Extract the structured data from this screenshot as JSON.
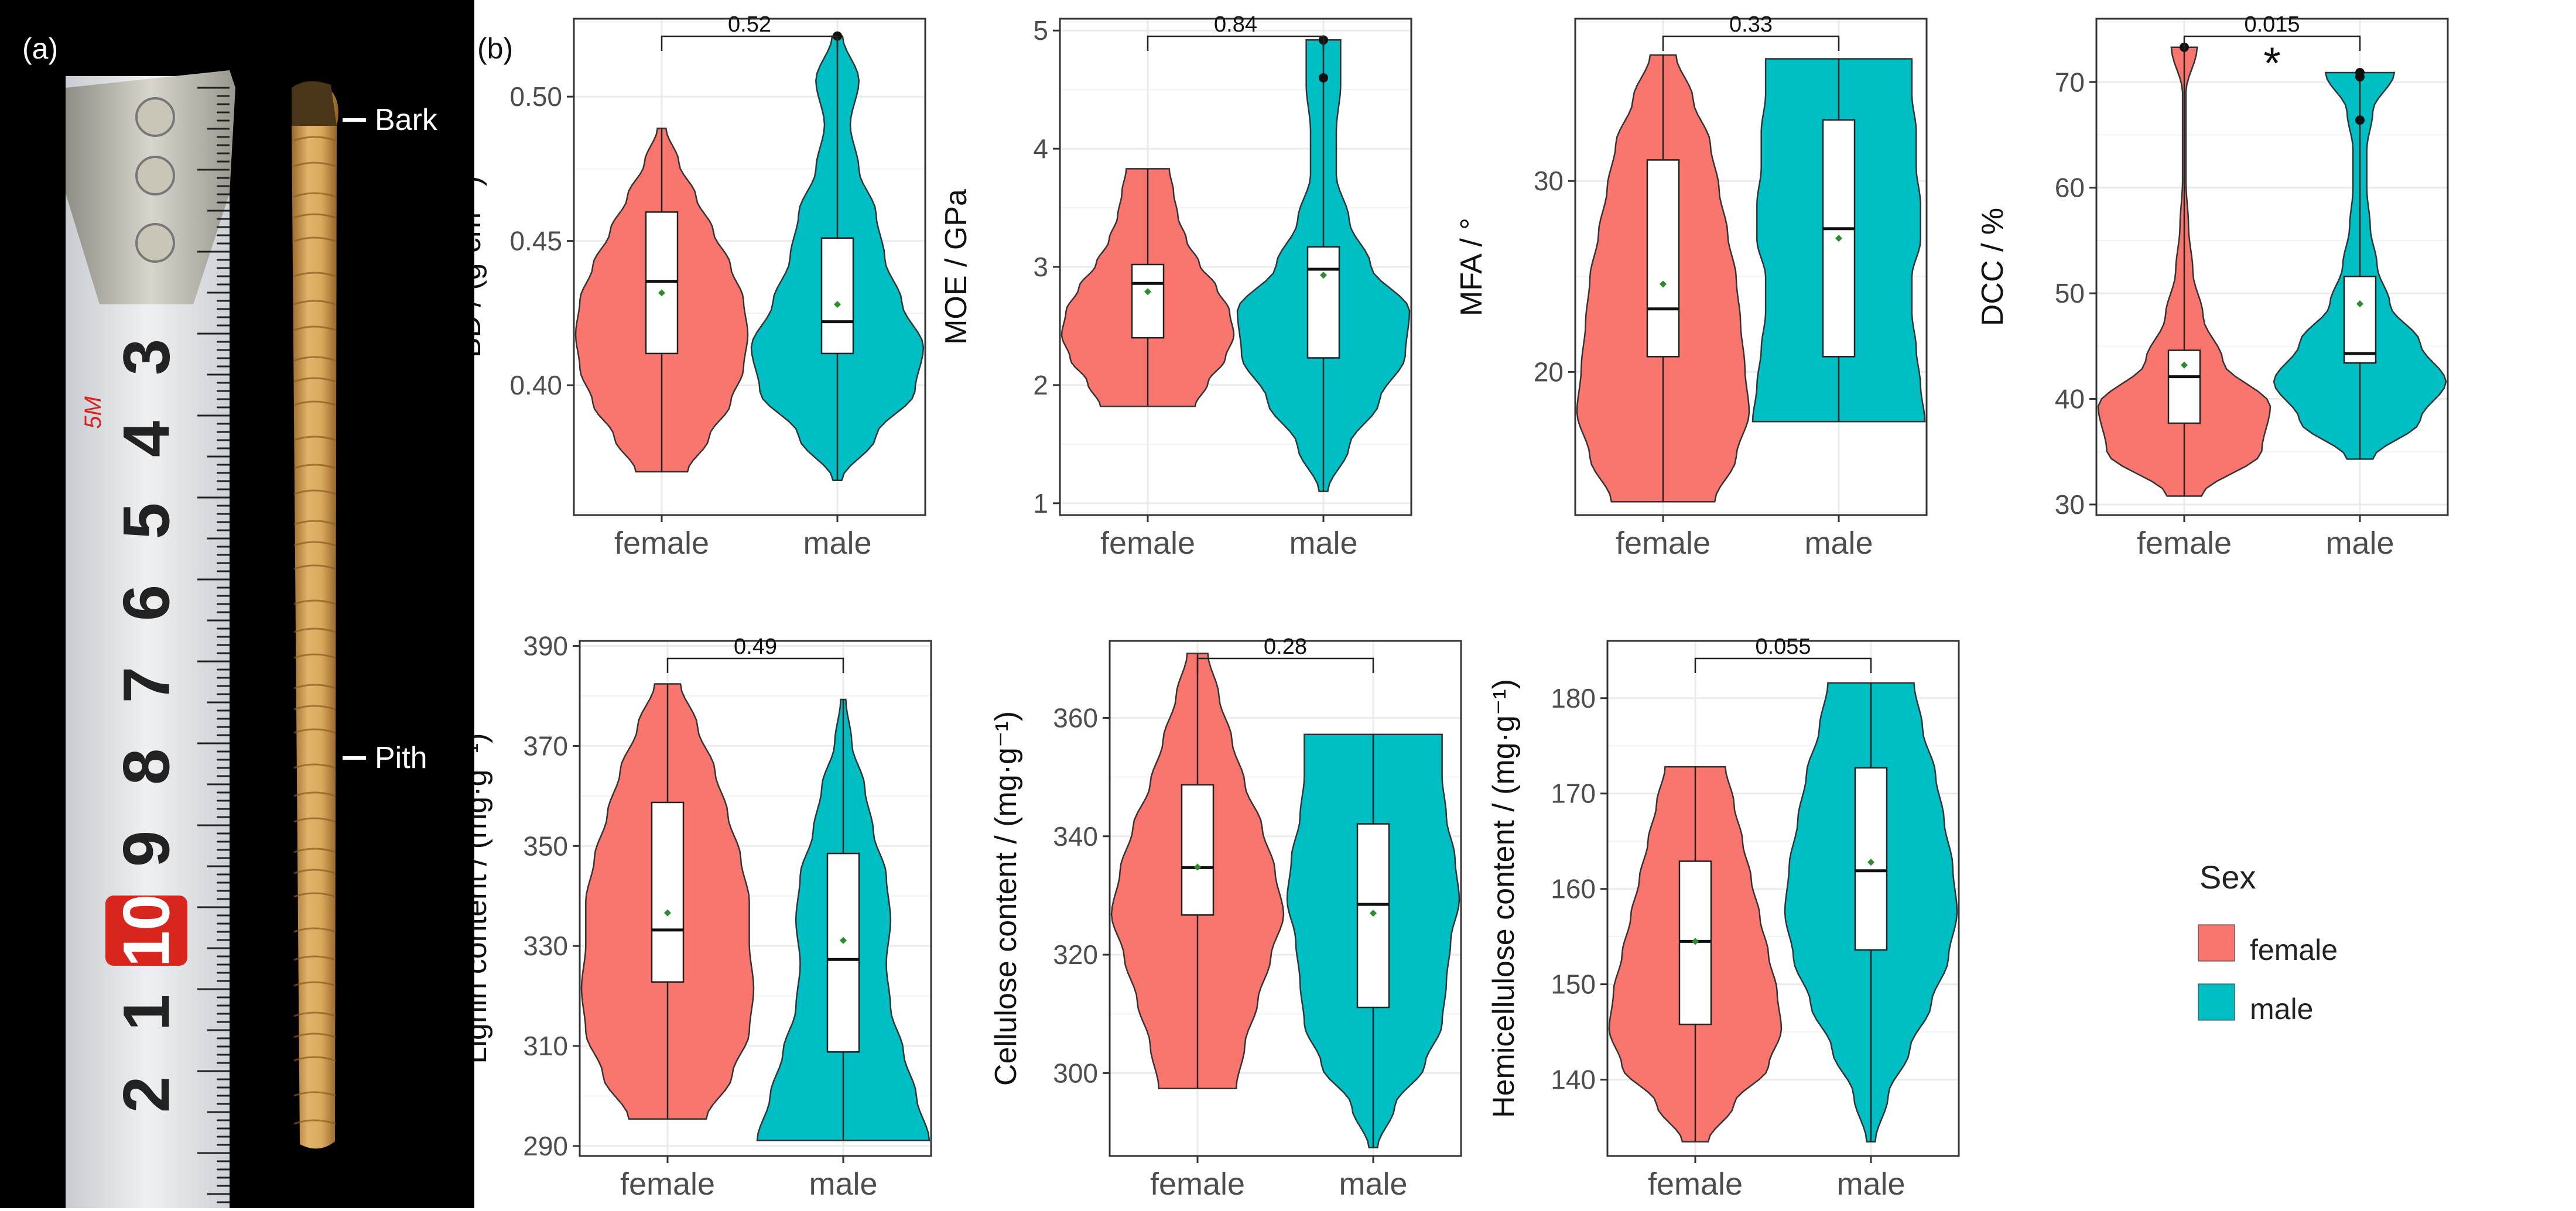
{
  "panel_a": {
    "label": "(a)",
    "tape_mark": "5M",
    "tape_numbers": [
      "3",
      "4",
      "5",
      "6",
      "7",
      "8",
      "9",
      "10",
      "1",
      "2"
    ],
    "bark_label": "Bark",
    "pith_label": "Pith"
  },
  "panel_b": {
    "label": "(b)"
  },
  "legend": {
    "title": "Sex",
    "items": [
      {
        "label": "female",
        "color": "#F8766D"
      },
      {
        "label": "male",
        "color": "#00BFC4"
      }
    ]
  },
  "colors": {
    "female": "#F8766D",
    "male": "#00BFC4",
    "mean_point": "#2e8b2e",
    "grid": "#ebebeb",
    "outline": "#333333"
  },
  "chart_data": [
    {
      "id": "bd",
      "type": "violin",
      "ylabel": "BD / (g·cm⁻³)",
      "categories": [
        "female",
        "male"
      ],
      "ylim": [
        0.355,
        0.527
      ],
      "yticks": [
        0.4,
        0.45,
        0.5
      ],
      "ytick_labels": [
        "0.40",
        "0.45",
        "0.50"
      ],
      "p_value": "0.52",
      "significance": "",
      "series": [
        {
          "name": "female",
          "min": 0.37,
          "max": 0.489,
          "q1": 0.411,
          "median": 0.436,
          "q3": 0.46,
          "mean": 0.432,
          "violin_profile": [
            0.3,
            0.55,
            0.8,
            0.95,
            1.0,
            0.95,
            0.8,
            0.6,
            0.4,
            0.2,
            0.05
          ],
          "outliers": []
        },
        {
          "name": "male",
          "min": 0.367,
          "max": 0.521,
          "q1": 0.411,
          "median": 0.422,
          "q3": 0.451,
          "mean": 0.428,
          "violin_profile": [
            0.05,
            0.45,
            0.9,
            1.0,
            0.75,
            0.55,
            0.45,
            0.25,
            0.15,
            0.25,
            0.06
          ],
          "outliers": [
            0.521
          ]
        }
      ]
    },
    {
      "id": "moe",
      "type": "violin",
      "ylabel": "MOE / GPa",
      "categories": [
        "female",
        "male"
      ],
      "ylim": [
        0.9,
        5.1
      ],
      "yticks": [
        1,
        2,
        3,
        4,
        5
      ],
      "ytick_labels": [
        "1",
        "2",
        "3",
        "4",
        "5"
      ],
      "p_value": "0.84",
      "significance": "",
      "series": [
        {
          "name": "female",
          "min": 1.82,
          "max": 3.83,
          "q1": 2.4,
          "median": 2.86,
          "q3": 3.02,
          "mean": 2.79,
          "violin_profile": [
            0.55,
            0.7,
            0.9,
            1.0,
            0.95,
            0.8,
            0.6,
            0.45,
            0.35,
            0.3,
            0.25
          ],
          "outliers": []
        },
        {
          "name": "male",
          "min": 1.1,
          "max": 4.92,
          "q1": 2.23,
          "median": 2.98,
          "q3": 3.17,
          "mean": 2.93,
          "violin_profile": [
            0.05,
            0.3,
            0.65,
            0.95,
            1.0,
            0.55,
            0.3,
            0.15,
            0.15,
            0.2,
            0.2
          ],
          "outliers": [
            4.92,
            4.6
          ]
        }
      ]
    },
    {
      "id": "mfa",
      "type": "violin",
      "ylabel": "MFA / °",
      "categories": [
        "female",
        "male"
      ],
      "ylim": [
        12.5,
        38.5
      ],
      "yticks": [
        20,
        30
      ],
      "ytick_labels": [
        "20",
        "30"
      ],
      "p_value": "0.33",
      "significance": "",
      "series": [
        {
          "name": "female",
          "min": 13.2,
          "max": 36.6,
          "q1": 20.8,
          "median": 23.3,
          "q3": 31.1,
          "mean": 24.6,
          "violin_profile": [
            0.6,
            0.85,
            1.0,
            0.95,
            0.9,
            0.85,
            0.75,
            0.65,
            0.55,
            0.35,
            0.15
          ],
          "outliers": []
        },
        {
          "name": "male",
          "min": 17.4,
          "max": 36.4,
          "q1": 20.8,
          "median": 27.5,
          "q3": 33.2,
          "mean": 27.0,
          "violin_profile": [
            1.0,
            0.95,
            0.9,
            0.85,
            0.85,
            0.95,
            0.95,
            0.9,
            0.9,
            0.85,
            0.85
          ],
          "outliers": []
        }
      ]
    },
    {
      "id": "dcc",
      "type": "violin",
      "ylabel": "DCC / %",
      "categories": [
        "female",
        "male"
      ],
      "ylim": [
        29,
        76
      ],
      "yticks": [
        30,
        40,
        50,
        60,
        70
      ],
      "ytick_labels": [
        "30",
        "40",
        "50",
        "60",
        "70"
      ],
      "p_value": "0.015",
      "significance": "*",
      "series": [
        {
          "name": "female",
          "min": 30.8,
          "max": 73.3,
          "q1": 37.7,
          "median": 42.1,
          "q3": 44.6,
          "mean": 43.2,
          "violin_profile": [
            0.2,
            0.9,
            1.0,
            0.45,
            0.22,
            0.1,
            0.05,
            0.02,
            0.02,
            0.02,
            0.15
          ],
          "outliers": [
            73.3
          ]
        },
        {
          "name": "male",
          "min": 34.3,
          "max": 70.9,
          "q1": 43.4,
          "median": 44.3,
          "q3": 51.6,
          "mean": 49.0,
          "violin_profile": [
            0.15,
            0.7,
            1.0,
            0.7,
            0.35,
            0.2,
            0.12,
            0.08,
            0.08,
            0.15,
            0.4
          ],
          "outliers": [
            70.9,
            70.5,
            66.4
          ]
        }
      ]
    },
    {
      "id": "lignin",
      "type": "violin",
      "ylabel": "Lignin content / (mg·g⁻¹)",
      "categories": [
        "female",
        "male"
      ],
      "ylim": [
        288,
        391
      ],
      "yticks": [
        290,
        310,
        330,
        350,
        370,
        390
      ],
      "ytick_labels": [
        "290",
        "310",
        "330",
        "350",
        "370",
        "390"
      ],
      "p_value": "0.49",
      "significance": "",
      "series": [
        {
          "name": "female",
          "min": 295.4,
          "max": 382.4,
          "q1": 322.8,
          "median": 333.2,
          "q3": 358.7,
          "mean": 336.6,
          "violin_profile": [
            0.45,
            0.75,
            0.95,
            1.0,
            0.95,
            0.95,
            0.85,
            0.7,
            0.55,
            0.35,
            0.15
          ],
          "outliers": []
        },
        {
          "name": "male",
          "min": 291.1,
          "max": 379.3,
          "q1": 308.8,
          "median": 327.3,
          "q3": 348.5,
          "mean": 331.1,
          "violin_profile": [
            1.0,
            0.85,
            0.7,
            0.55,
            0.5,
            0.55,
            0.5,
            0.35,
            0.25,
            0.1,
            0.03
          ],
          "outliers": []
        }
      ]
    },
    {
      "id": "cellulose",
      "type": "violin",
      "ylabel": "Cellulose content / (mg·g⁻¹)",
      "categories": [
        "female",
        "male"
      ],
      "ylim": [
        286,
        373
      ],
      "yticks": [
        300,
        320,
        340,
        360
      ],
      "ytick_labels": [
        "300",
        "320",
        "340",
        "360"
      ],
      "p_value": "0.28",
      "significance": "",
      "series": [
        {
          "name": "female",
          "min": 297.4,
          "max": 370.9,
          "q1": 326.7,
          "median": 334.7,
          "q3": 348.7,
          "mean": 334.8,
          "violin_profile": [
            0.45,
            0.55,
            0.7,
            0.85,
            1.0,
            0.9,
            0.75,
            0.55,
            0.4,
            0.25,
            0.12
          ],
          "outliers": []
        },
        {
          "name": "male",
          "min": 287.4,
          "max": 357.2,
          "q1": 311.1,
          "median": 328.5,
          "q3": 342.1,
          "mean": 327.0,
          "violin_profile": [
            0.05,
            0.25,
            0.6,
            0.8,
            0.85,
            0.9,
            1.0,
            0.95,
            0.85,
            0.8,
            0.8
          ],
          "outliers": []
        }
      ]
    },
    {
      "id": "hemicellulose",
      "type": "violin",
      "ylabel": "Hemicellulose content / (mg·g⁻¹)",
      "categories": [
        "female",
        "male"
      ],
      "ylim": [
        132,
        186
      ],
      "yticks": [
        140,
        150,
        160,
        170,
        180
      ],
      "ytick_labels": [
        "140",
        "150",
        "160",
        "170",
        "180"
      ],
      "p_value": "0.055",
      "significance": "",
      "series": [
        {
          "name": "female",
          "min": 133.5,
          "max": 172.8,
          "q1": 145.8,
          "median": 154.5,
          "q3": 162.9,
          "mean": 154.5,
          "violin_profile": [
            0.15,
            0.45,
            0.85,
            1.0,
            0.95,
            0.85,
            0.75,
            0.65,
            0.55,
            0.45,
            0.35
          ],
          "outliers": []
        },
        {
          "name": "male",
          "min": 133.5,
          "max": 181.6,
          "q1": 153.6,
          "median": 161.9,
          "q3": 172.7,
          "mean": 162.8,
          "violin_profile": [
            0.05,
            0.2,
            0.45,
            0.7,
            0.9,
            1.0,
            0.95,
            0.85,
            0.75,
            0.6,
            0.5
          ],
          "outliers": []
        }
      ]
    }
  ]
}
